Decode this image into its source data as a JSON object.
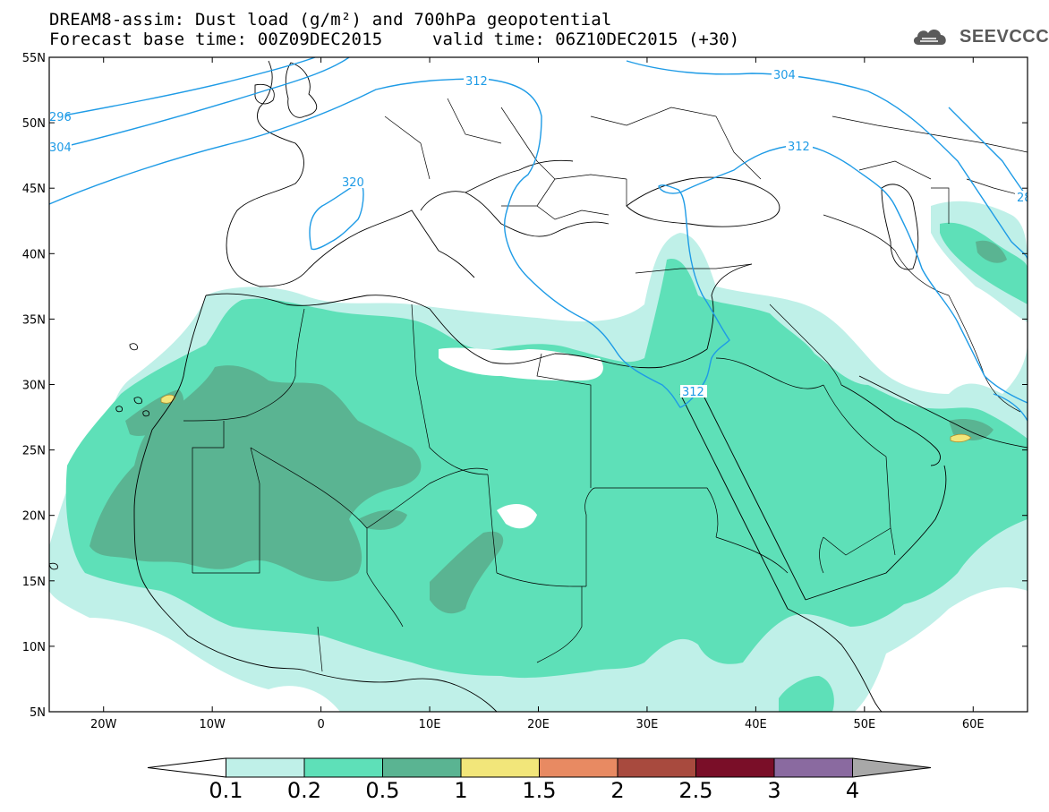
{
  "title": {
    "line1": "DREAM8-assim: Dust load (g/m²) and 700hPa geopotential",
    "line2_left": "Forecast base time: 00Z09DEC2015",
    "line2_right": "valid time: 06Z10DEC2015 (+30)"
  },
  "logo": {
    "text": "SEEVCCC",
    "icon": "cloud-icon"
  },
  "map": {
    "lon_range": [
      -25,
      65
    ],
    "lat_range": [
      5,
      55
    ],
    "x_ticks": [
      {
        "lon": -20,
        "label": "20W"
      },
      {
        "lon": -10,
        "label": "10W"
      },
      {
        "lon": 0,
        "label": "0"
      },
      {
        "lon": 10,
        "label": "10E"
      },
      {
        "lon": 20,
        "label": "20E"
      },
      {
        "lon": 30,
        "label": "30E"
      },
      {
        "lon": 40,
        "label": "40E"
      },
      {
        "lon": 50,
        "label": "50E"
      },
      {
        "lon": 60,
        "label": "60E"
      }
    ],
    "y_ticks": [
      {
        "lat": 55,
        "label": "55N"
      },
      {
        "lat": 50,
        "label": "50N"
      },
      {
        "lat": 45,
        "label": "45N"
      },
      {
        "lat": 40,
        "label": "40N"
      },
      {
        "lat": 35,
        "label": "35N"
      },
      {
        "lat": 30,
        "label": "30N"
      },
      {
        "lat": 25,
        "label": "25N"
      },
      {
        "lat": 20,
        "label": "20N"
      },
      {
        "lat": 15,
        "label": "15N"
      },
      {
        "lat": 10,
        "label": "10N"
      },
      {
        "lat": 5,
        "label": "5N"
      }
    ],
    "contour_labels": [
      "296",
      "304",
      "312",
      "320",
      "304",
      "312",
      "312",
      "28"
    ]
  },
  "colorbar": {
    "levels": [
      "0.1",
      "0.2",
      "0.5",
      "1",
      "1.5",
      "2",
      "2.5",
      "3",
      "4"
    ],
    "colors": [
      "#ffffff",
      "#bff0e8",
      "#5ee0b8",
      "#5ab492",
      "#f2e67a",
      "#e88a62",
      "#a84a3e",
      "#7a0e28",
      "#8a6aa0",
      "#a8a8a8"
    ]
  },
  "dust_colors": {
    "light": "#bff0e8",
    "medium": "#5ee0b8",
    "dark": "#5ab492",
    "yellow": "#f2e67a"
  },
  "contour_color": "#1e9be6"
}
